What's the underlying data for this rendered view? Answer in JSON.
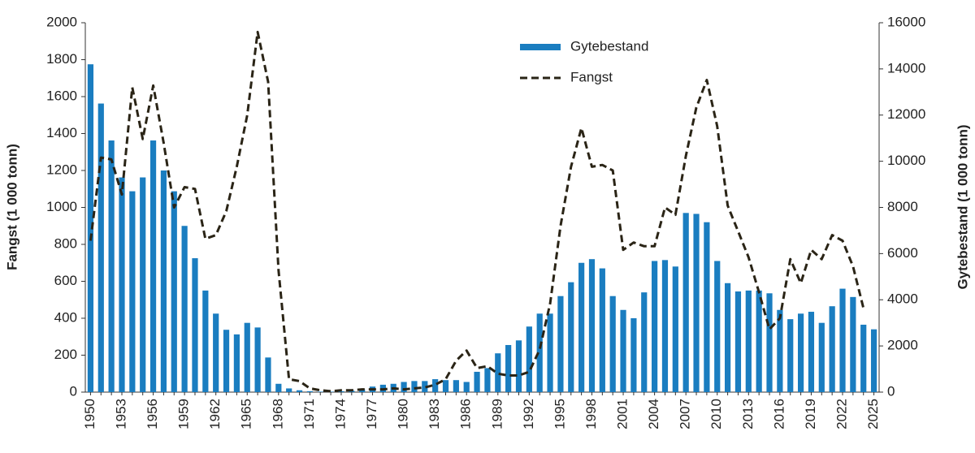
{
  "chart_data": {
    "type": "bar-line",
    "y_label": "Fangst (1 000 tonn)",
    "y2_label": "Gytebestand (1 000 tonn)",
    "categories": [
      "1950",
      null,
      null,
      "1953",
      null,
      null,
      "1956",
      null,
      null,
      "1959",
      null,
      null,
      "1962",
      null,
      null,
      "1965",
      null,
      null,
      "1968",
      null,
      null,
      "1971",
      null,
      null,
      "1974",
      null,
      null,
      "1977",
      null,
      null,
      "1980",
      null,
      null,
      "1983",
      null,
      null,
      "1986",
      null,
      null,
      "1989",
      null,
      null,
      "1992",
      null,
      null,
      "1995",
      null,
      null,
      "1998",
      null,
      null,
      "2001",
      null,
      null,
      "2004",
      null,
      null,
      "2007",
      null,
      null,
      "2010",
      null,
      null,
      "2013",
      null,
      null,
      "2016",
      null,
      null,
      "2019",
      null,
      null,
      "2022",
      null,
      null,
      "2025"
    ],
    "series": [
      {
        "name": "Gytebestand",
        "kind": "bar",
        "axis": "y2",
        "color": "#1a7dc0",
        "values": [
          14200,
          12500,
          10900,
          9300,
          8700,
          9300,
          10900,
          9600,
          8700,
          7200,
          5800,
          4400,
          3400,
          2700,
          2500,
          3000,
          2800,
          1500,
          360,
          160,
          80,
          40,
          20,
          20,
          40,
          60,
          120,
          240,
          320,
          360,
          440,
          480,
          480,
          560,
          520,
          520,
          440,
          880,
          1040,
          1680,
          2040,
          2240,
          2840,
          3400,
          3400,
          4160,
          4760,
          5600,
          5760,
          5360,
          4160,
          3560,
          3200,
          4320,
          5680,
          5720,
          5440,
          7760,
          7720,
          7360,
          5680,
          4720,
          4360,
          4400,
          4400,
          4280,
          3560,
          3160,
          3400,
          3480,
          3000,
          3720,
          4480,
          4120,
          2920,
          2720
        ]
      },
      {
        "name": "Fangst",
        "kind": "line",
        "axis": "y",
        "color": "#2a2416",
        "values": [
          820,
          1270,
          1260,
          1070,
          1650,
          1370,
          1660,
          1350,
          1000,
          1110,
          1100,
          830,
          850,
          980,
          1220,
          1500,
          1950,
          1680,
          660,
          70,
          60,
          20,
          10,
          5,
          10,
          10,
          15,
          15,
          15,
          20,
          15,
          20,
          25,
          40,
          70,
          170,
          225,
          130,
          140,
          100,
          90,
          90,
          110,
          230,
          480,
          900,
          1220,
          1430,
          1220,
          1230,
          1200,
          770,
          810,
          790,
          790,
          1000,
          960,
          1280,
          1540,
          1690,
          1440,
          1010,
          870,
          730,
          540,
          340,
          400,
          720,
          590,
          770,
          720,
          850,
          820,
          680,
          455,
          null
        ]
      }
    ],
    "ylim": [
      0,
      2000
    ],
    "yticks": [
      0,
      200,
      400,
      600,
      800,
      1000,
      1200,
      1400,
      1600,
      1800,
      2000
    ],
    "y2lim": [
      0,
      16000
    ],
    "y2ticks": [
      0,
      2000,
      4000,
      6000,
      8000,
      10000,
      12000,
      14000,
      16000
    ],
    "legend": "top-center"
  }
}
